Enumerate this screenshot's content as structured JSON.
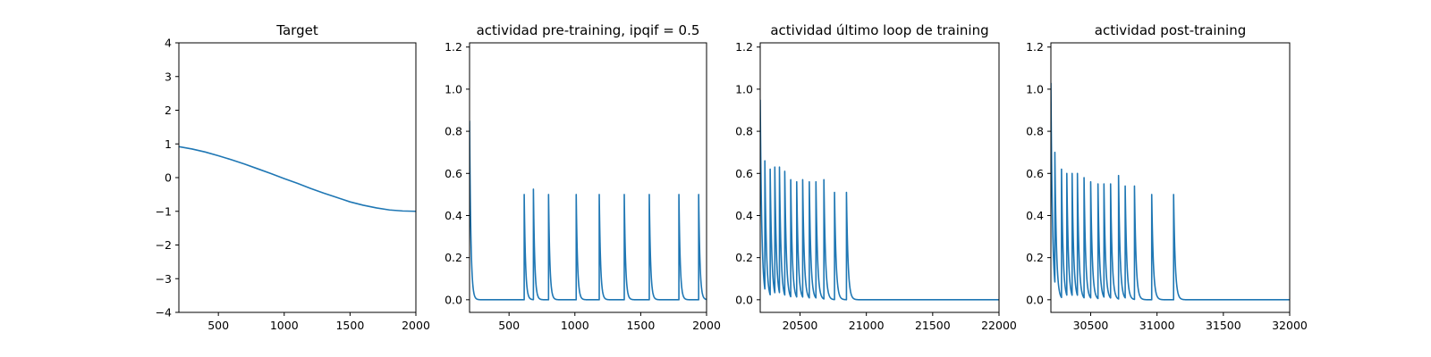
{
  "colors": {
    "line": "#1f77b4",
    "background": "#ffffff"
  },
  "chart_data": [
    {
      "type": "line",
      "title": "Target",
      "xlabel": "",
      "ylabel": "",
      "xlim": [
        200,
        2000
      ],
      "ylim": [
        -4,
        4
      ],
      "xticks": [
        500,
        1000,
        1500,
        2000
      ],
      "yticks": [
        -4,
        -3,
        -2,
        -1,
        0,
        1,
        2,
        3,
        4
      ],
      "ytick_labels": [
        "−4",
        "−3",
        "−2",
        "−1",
        "0",
        "1",
        "2",
        "3",
        "4"
      ],
      "grid": false,
      "series": [
        {
          "x": [
            200,
            300,
            400,
            500,
            600,
            700,
            800,
            900,
            1000,
            1100,
            1200,
            1300,
            1400,
            1500,
            1600,
            1700,
            1800,
            1900,
            2000
          ],
          "y": [
            0.92,
            0.85,
            0.76,
            0.65,
            0.53,
            0.4,
            0.26,
            0.12,
            -0.03,
            -0.17,
            -0.32,
            -0.46,
            -0.59,
            -0.72,
            -0.82,
            -0.9,
            -0.96,
            -0.99,
            -1.0
          ]
        }
      ]
    },
    {
      "type": "line",
      "title": "actividad pre-training, ipqif = 0.5",
      "xlabel": "",
      "ylabel": "",
      "xlim": [
        200,
        2000
      ],
      "ylim": [
        -0.06,
        1.22
      ],
      "xticks": [
        500,
        1000,
        1500,
        2000
      ],
      "yticks": [
        0.0,
        0.2,
        0.4,
        0.6,
        0.8,
        1.0,
        1.2
      ],
      "ytick_labels": [
        "0.0",
        "0.2",
        "0.4",
        "0.6",
        "0.8",
        "1.0",
        "1.2"
      ],
      "grid": false,
      "series": [
        {
          "start": 0.85,
          "decay": 10,
          "baseline": 0.0,
          "spikes": [
            [
              615,
              0.5
            ],
            [
              685,
              0.525
            ],
            [
              800,
              0.5
            ],
            [
              1010,
              0.5
            ],
            [
              1185,
              0.5
            ],
            [
              1375,
              0.5
            ],
            [
              1565,
              0.5
            ],
            [
              1790,
              0.5
            ],
            [
              1940,
              0.5
            ]
          ]
        }
      ]
    },
    {
      "type": "line",
      "title": "actividad último loop de training",
      "xlabel": "",
      "ylabel": "",
      "xlim": [
        20200,
        22000
      ],
      "ylim": [
        -0.06,
        1.22
      ],
      "xticks": [
        20500,
        21000,
        21500,
        22000
      ],
      "yticks": [
        0.0,
        0.2,
        0.4,
        0.6,
        0.8,
        1.0,
        1.2
      ],
      "ytick_labels": [
        "0.0",
        "0.2",
        "0.4",
        "0.6",
        "0.8",
        "1.0",
        "1.2"
      ],
      "grid": false,
      "series": [
        {
          "start": 0.95,
          "decay": 12,
          "baseline": 0.0,
          "spikes": [
            [
              20235,
              0.66
            ],
            [
              20275,
              0.62
            ],
            [
              20310,
              0.63
            ],
            [
              20345,
              0.63
            ],
            [
              20385,
              0.61
            ],
            [
              20430,
              0.57
            ],
            [
              20475,
              0.56
            ],
            [
              20520,
              0.57
            ],
            [
              20570,
              0.56
            ],
            [
              20620,
              0.56
            ],
            [
              20680,
              0.57
            ],
            [
              20760,
              0.51
            ],
            [
              20850,
              0.51
            ]
          ]
        }
      ]
    },
    {
      "type": "line",
      "title": "actividad post-training",
      "xlabel": "",
      "ylabel": "",
      "xlim": [
        30200,
        32000
      ],
      "ylim": [
        -0.06,
        1.22
      ],
      "xticks": [
        30500,
        31000,
        31500,
        32000
      ],
      "yticks": [
        0.0,
        0.2,
        0.4,
        0.6,
        0.8,
        1.0,
        1.2
      ],
      "ytick_labels": [
        "0.0",
        "0.2",
        "0.4",
        "0.6",
        "0.8",
        "1.0",
        "1.2"
      ],
      "grid": false,
      "series": [
        {
          "start": 1.03,
          "decay": 12,
          "baseline": 0.0,
          "spikes": [
            [
              30230,
              0.7
            ],
            [
              30280,
              0.62
            ],
            [
              30320,
              0.6
            ],
            [
              30360,
              0.6
            ],
            [
              30400,
              0.6
            ],
            [
              30450,
              0.58
            ],
            [
              30500,
              0.56
            ],
            [
              30555,
              0.55
            ],
            [
              30600,
              0.55
            ],
            [
              30650,
              0.55
            ],
            [
              30710,
              0.59
            ],
            [
              30760,
              0.54
            ],
            [
              30830,
              0.54
            ],
            [
              30960,
              0.5
            ],
            [
              31125,
              0.5
            ]
          ]
        }
      ]
    }
  ]
}
